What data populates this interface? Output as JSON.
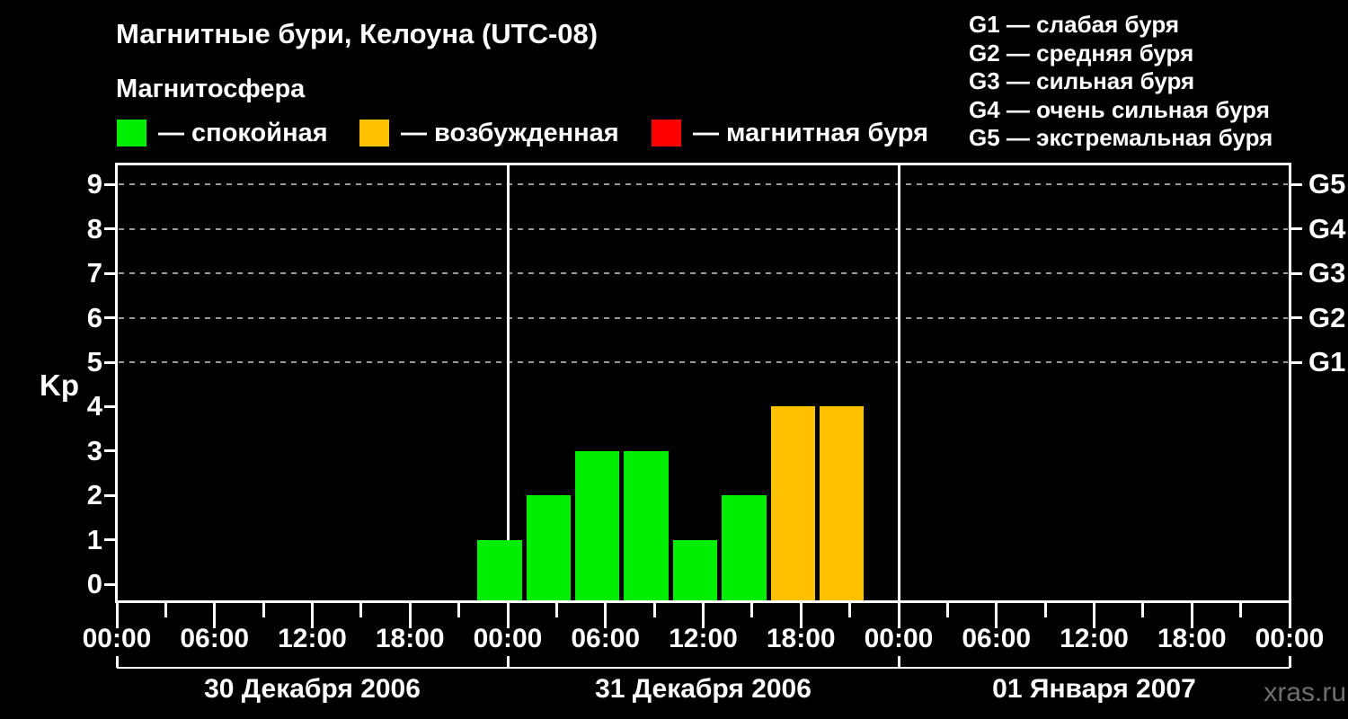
{
  "title": "Магнитные бури, Келоуна (UTC-08)",
  "subtitle": "Магнитосфера",
  "legend": {
    "items": [
      {
        "label": "— спокойная",
        "state": "спокойная",
        "color": "#00ee00"
      },
      {
        "label": "— возбужденная",
        "state": "возбужденная",
        "color": "#ffc000"
      },
      {
        "label": "— магнитная буря",
        "state": "магнитная буря",
        "color": "#ff0000"
      }
    ]
  },
  "g_legend": [
    "G1 — слабая буря",
    "G2 — средняя буря",
    "G3 — сильная буря",
    "G4 — очень сильная буря",
    "G5 — экстремальная буря"
  ],
  "watermark": "xras.ru",
  "chart_data": {
    "type": "bar",
    "title": "Магнитные бури, Келоуна (UTC-08)",
    "ylabel": "Kp",
    "ylim": [
      0,
      9
    ],
    "x_range_hours": [
      0,
      72
    ],
    "grid": "dashed horizontal lines at Kp 5-9",
    "y_axis": {
      "label": "Kp",
      "ticks": [
        0,
        1,
        2,
        3,
        4,
        5,
        6,
        7,
        8,
        9
      ],
      "g_levels": [
        {
          "kp": 5,
          "label": "G1"
        },
        {
          "kp": 6,
          "label": "G2"
        },
        {
          "kp": 7,
          "label": "G3"
        },
        {
          "kp": 8,
          "label": "G4"
        },
        {
          "kp": 9,
          "label": "G5"
        }
      ]
    },
    "x_axis": {
      "time_labels": [
        "00:00",
        "06:00",
        "12:00",
        "18:00"
      ],
      "major_tick_hours": 6,
      "minor_tick_hours": 3,
      "days": [
        "30 Декабря 2006",
        "31 Декабря 2006",
        "01 Января 2007"
      ]
    },
    "bars": [
      {
        "start_hour": 22,
        "end_hour": 25,
        "kp": 1,
        "state": "спокойная",
        "color": "#00ee00"
      },
      {
        "start_hour": 25,
        "end_hour": 28,
        "kp": 2,
        "state": "спокойная",
        "color": "#00ee00"
      },
      {
        "start_hour": 28,
        "end_hour": 31,
        "kp": 3,
        "state": "спокойная",
        "color": "#00ee00"
      },
      {
        "start_hour": 31,
        "end_hour": 34,
        "kp": 3,
        "state": "спокойная",
        "color": "#00ee00"
      },
      {
        "start_hour": 34,
        "end_hour": 37,
        "kp": 1,
        "state": "спокойная",
        "color": "#00ee00"
      },
      {
        "start_hour": 37,
        "end_hour": 40,
        "kp": 2,
        "state": "спокойная",
        "color": "#00ee00"
      },
      {
        "start_hour": 40,
        "end_hour": 43,
        "kp": 4,
        "state": "возбужденная",
        "color": "#ffc000"
      },
      {
        "start_hour": 43,
        "end_hour": 46,
        "kp": 4,
        "state": "возбужденная",
        "color": "#ffc000"
      }
    ],
    "colors": {
      "quiet": "#00ee00",
      "excited": "#ffc000",
      "storm": "#ff0000"
    }
  }
}
